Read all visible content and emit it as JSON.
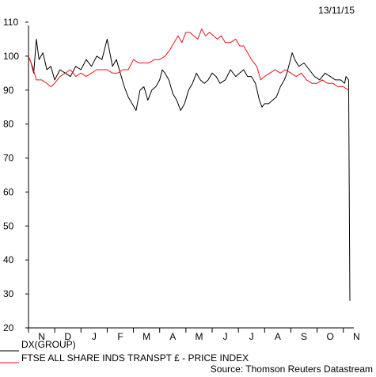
{
  "chart_data": {
    "type": "line",
    "date": "13/11/15",
    "source": "Source: Thomson Reuters Datastream",
    "ylim": [
      20,
      110
    ],
    "yticks": [
      20,
      30,
      40,
      50,
      60,
      70,
      80,
      90,
      100,
      110
    ],
    "xlim": [
      0,
      12.4
    ],
    "month_labels": [
      "N",
      "D",
      "J",
      "F",
      "M",
      "A",
      "M",
      "J",
      "J",
      "A",
      "S",
      "O",
      "N"
    ],
    "grid": false,
    "legend_position": "bottom-left",
    "series": [
      {
        "name": "DX(GROUP)",
        "color": "#000000",
        "points": [
          [
            0.0,
            100
          ],
          [
            0.1,
            98
          ],
          [
            0.2,
            95
          ],
          [
            0.3,
            105
          ],
          [
            0.4,
            99
          ],
          [
            0.55,
            101
          ],
          [
            0.7,
            96
          ],
          [
            0.85,
            97
          ],
          [
            1.0,
            93
          ],
          [
            1.2,
            96
          ],
          [
            1.4,
            95
          ],
          [
            1.6,
            94
          ],
          [
            1.8,
            97
          ],
          [
            2.0,
            96
          ],
          [
            2.2,
            99
          ],
          [
            2.4,
            97
          ],
          [
            2.6,
            100
          ],
          [
            2.8,
            99
          ],
          [
            3.0,
            105
          ],
          [
            3.1,
            101
          ],
          [
            3.2,
            97
          ],
          [
            3.35,
            99
          ],
          [
            3.5,
            95
          ],
          [
            3.65,
            91
          ],
          [
            3.8,
            88
          ],
          [
            3.95,
            86
          ],
          [
            4.1,
            84
          ],
          [
            4.25,
            90
          ],
          [
            4.4,
            91
          ],
          [
            4.55,
            87
          ],
          [
            4.7,
            90
          ],
          [
            4.85,
            91
          ],
          [
            5.0,
            93
          ],
          [
            5.1,
            96
          ],
          [
            5.2,
            95
          ],
          [
            5.35,
            93
          ],
          [
            5.5,
            89
          ],
          [
            5.65,
            87
          ],
          [
            5.8,
            84
          ],
          [
            5.95,
            86
          ],
          [
            6.1,
            90
          ],
          [
            6.25,
            92
          ],
          [
            6.4,
            95
          ],
          [
            6.55,
            93
          ],
          [
            6.7,
            92
          ],
          [
            6.85,
            93
          ],
          [
            7.0,
            95
          ],
          [
            7.15,
            94
          ],
          [
            7.3,
            92
          ],
          [
            7.5,
            93
          ],
          [
            7.7,
            96
          ],
          [
            7.9,
            94
          ],
          [
            8.05,
            95
          ],
          [
            8.2,
            96
          ],
          [
            8.35,
            94
          ],
          [
            8.5,
            94
          ],
          [
            8.65,
            92
          ],
          [
            8.8,
            87
          ],
          [
            8.9,
            85
          ],
          [
            9.0,
            86
          ],
          [
            9.15,
            86
          ],
          [
            9.3,
            87
          ],
          [
            9.45,
            88
          ],
          [
            9.6,
            91
          ],
          [
            9.75,
            93
          ],
          [
            9.85,
            95
          ],
          [
            9.95,
            98
          ],
          [
            10.05,
            101
          ],
          [
            10.15,
            99
          ],
          [
            10.3,
            97
          ],
          [
            10.5,
            98
          ],
          [
            10.7,
            96
          ],
          [
            10.9,
            94
          ],
          [
            11.1,
            93
          ],
          [
            11.3,
            95
          ],
          [
            11.5,
            94
          ],
          [
            11.7,
            93
          ],
          [
            11.9,
            93
          ],
          [
            12.05,
            92
          ],
          [
            12.1,
            94
          ],
          [
            12.2,
            93
          ],
          [
            12.25,
            28
          ]
        ]
      },
      {
        "name": "FTSE ALL SHARE INDS TRANSPT £ - PRICE INDEX",
        "color": "#e8141c",
        "points": [
          [
            0.0,
            100
          ],
          [
            0.15,
            97
          ],
          [
            0.3,
            93
          ],
          [
            0.5,
            93
          ],
          [
            0.7,
            92
          ],
          [
            0.85,
            91
          ],
          [
            1.0,
            92
          ],
          [
            1.2,
            94
          ],
          [
            1.4,
            95
          ],
          [
            1.6,
            96
          ],
          [
            1.8,
            94
          ],
          [
            2.0,
            95
          ],
          [
            2.2,
            94
          ],
          [
            2.4,
            95
          ],
          [
            2.6,
            96
          ],
          [
            2.8,
            96
          ],
          [
            3.0,
            96
          ],
          [
            3.2,
            95
          ],
          [
            3.4,
            95
          ],
          [
            3.6,
            96
          ],
          [
            3.8,
            96
          ],
          [
            4.0,
            99
          ],
          [
            4.2,
            98
          ],
          [
            4.4,
            98
          ],
          [
            4.6,
            98
          ],
          [
            4.8,
            99
          ],
          [
            5.0,
            99
          ],
          [
            5.2,
            100
          ],
          [
            5.4,
            102
          ],
          [
            5.55,
            104
          ],
          [
            5.7,
            106
          ],
          [
            5.85,
            104
          ],
          [
            6.0,
            107
          ],
          [
            6.15,
            107
          ],
          [
            6.3,
            106
          ],
          [
            6.45,
            105
          ],
          [
            6.6,
            108
          ],
          [
            6.75,
            106
          ],
          [
            6.9,
            107
          ],
          [
            7.05,
            106
          ],
          [
            7.2,
            105
          ],
          [
            7.35,
            106
          ],
          [
            7.5,
            104
          ],
          [
            7.7,
            104
          ],
          [
            7.9,
            105
          ],
          [
            8.05,
            103
          ],
          [
            8.2,
            103
          ],
          [
            8.35,
            101
          ],
          [
            8.5,
            99
          ],
          [
            8.7,
            97
          ],
          [
            8.85,
            93
          ],
          [
            9.0,
            94
          ],
          [
            9.2,
            95
          ],
          [
            9.4,
            96
          ],
          [
            9.6,
            95
          ],
          [
            9.8,
            96
          ],
          [
            10.0,
            95
          ],
          [
            10.2,
            94
          ],
          [
            10.4,
            95
          ],
          [
            10.6,
            93
          ],
          [
            10.8,
            92
          ],
          [
            11.0,
            92
          ],
          [
            11.2,
            93
          ],
          [
            11.4,
            92
          ],
          [
            11.6,
            92
          ],
          [
            11.8,
            91
          ],
          [
            12.0,
            91
          ],
          [
            12.2,
            90
          ]
        ]
      }
    ]
  }
}
